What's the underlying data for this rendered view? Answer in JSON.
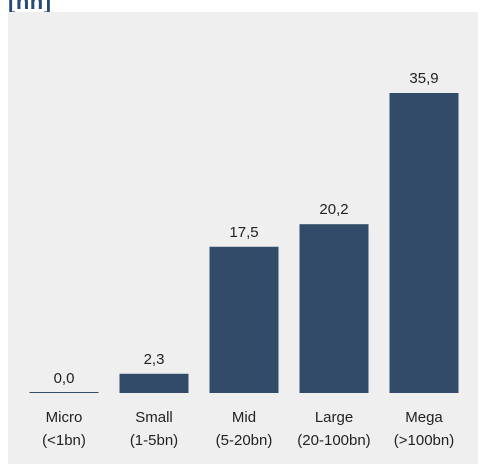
{
  "title_fragment": "[nn]",
  "colors": {
    "bar": "#324b68",
    "panel": "#efefef",
    "text": "#222222"
  },
  "chart_data": {
    "type": "bar",
    "categories": [
      "Micro\n(<1bn)",
      "Small\n(1-5bn)",
      "Mid\n(5-20bn)",
      "Large\n(20-100bn)",
      "Mega\n(>100bn)"
    ],
    "values": [
      0.0,
      2.3,
      17.5,
      20.2,
      35.9
    ],
    "data_labels": [
      "0,0",
      "2,3",
      "17,5",
      "20,2",
      "35,9"
    ],
    "title": "",
    "xlabel": "",
    "ylabel": "",
    "ylim": [
      0,
      35.9
    ],
    "grid": false,
    "legend": "none"
  }
}
